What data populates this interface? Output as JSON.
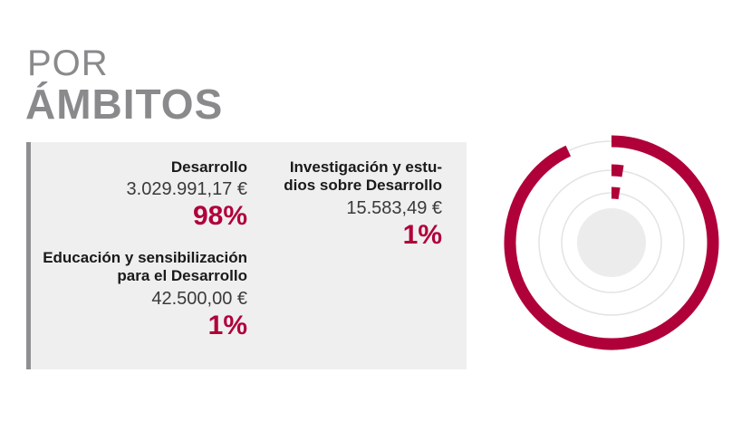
{
  "title": {
    "line1": "POR",
    "line2": "ÁMBITOS"
  },
  "items": [
    {
      "name_lines": [
        "Desarrollo"
      ],
      "amount": "3.029.991,17 €",
      "percent": "98%"
    },
    {
      "name_lines": [
        "Investigación y estu-",
        "dios sobre Desarrollo"
      ],
      "amount": "15.583,49 €",
      "percent": "1%"
    },
    {
      "name_lines": [
        "Educación y sensibilización",
        "para el Desarrollo"
      ],
      "amount": "42.500,00 €",
      "percent": "1%"
    }
  ],
  "colors": {
    "accent": "#b0003a",
    "track": "#e3e3e5",
    "center": "#ececed",
    "title": "#8a8a8c"
  },
  "chart_data": {
    "type": "radial-bar",
    "categories": [
      "Desarrollo",
      "Investigación y estudios sobre Desarrollo",
      "Educación y sensibilización para el Desarrollo"
    ],
    "values": [
      3029991.17,
      15583.49,
      42500.0
    ],
    "percent": [
      98,
      1,
      1
    ],
    "display_percent": [
      93,
      1,
      1
    ]
  }
}
